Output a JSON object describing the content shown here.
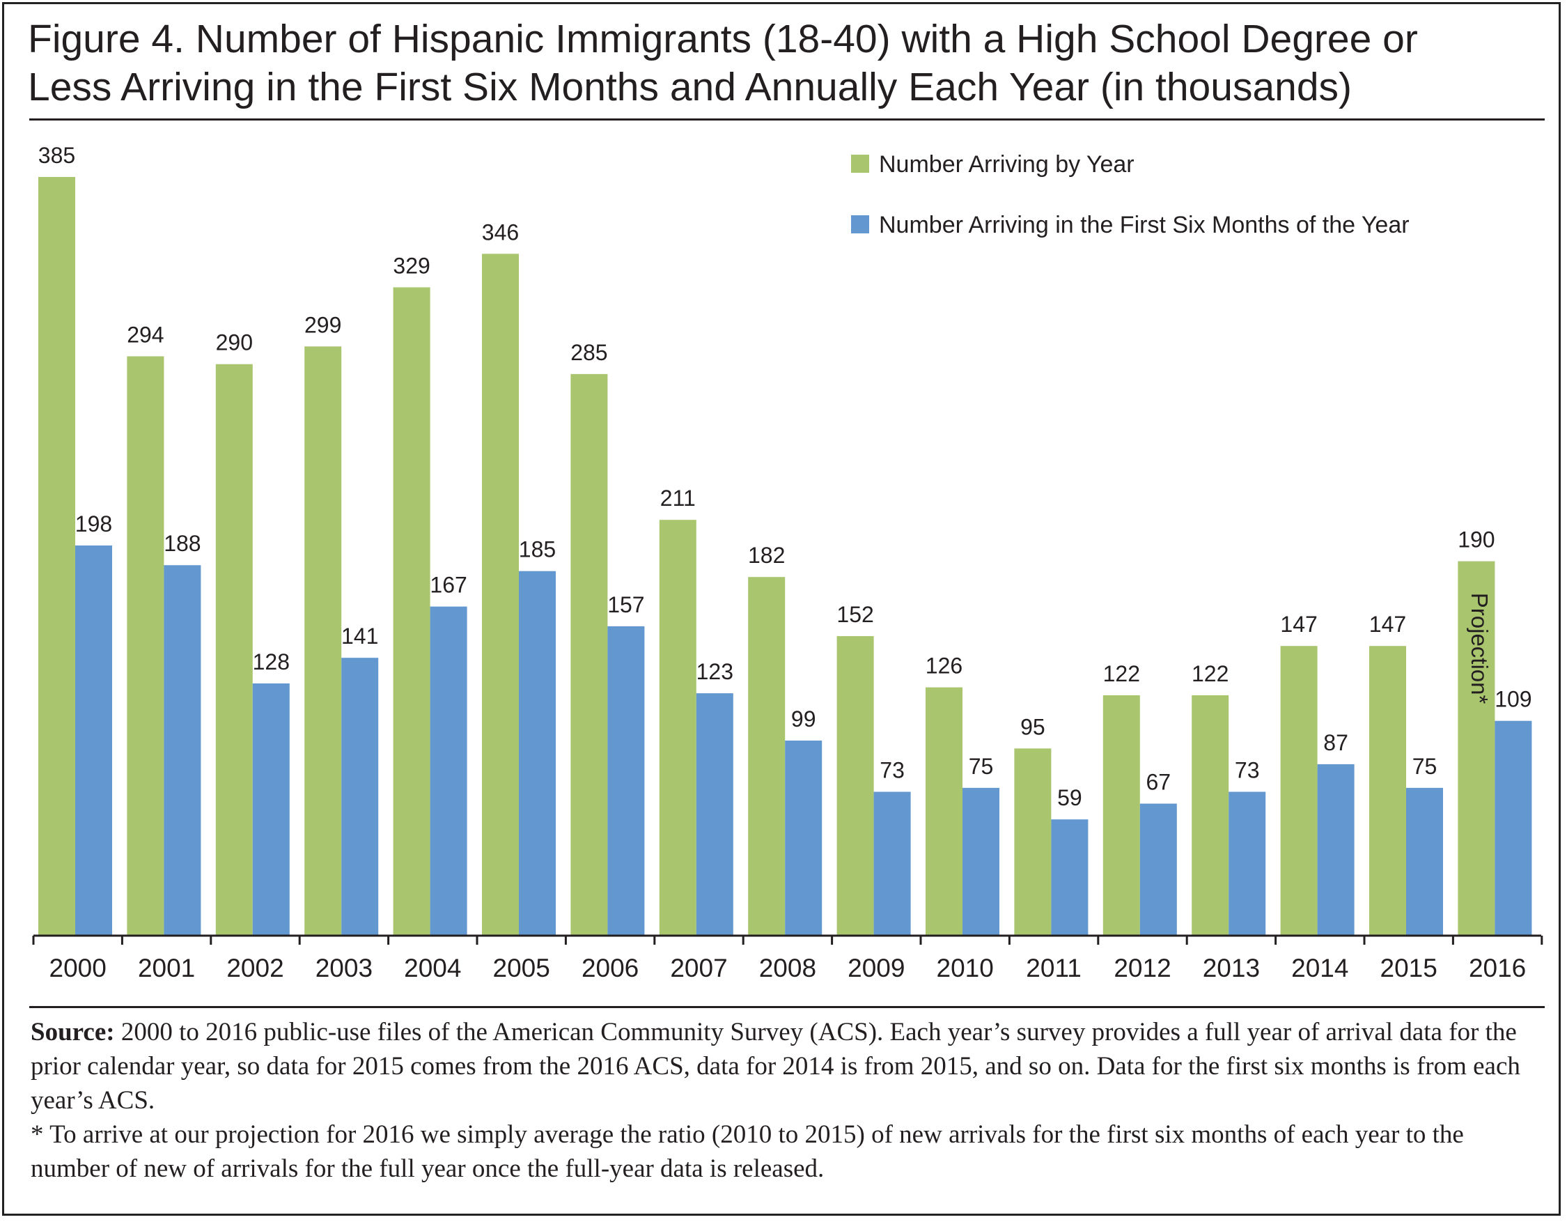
{
  "title": {
    "line1": "Figure 4. Number of Hispanic Immigrants (18-40) with a High School Degree or",
    "line2": "Less Arriving in the First Six Months and Annually Each Year (in thousands)"
  },
  "chart_data": {
    "type": "bar",
    "categories": [
      "2000",
      "2001",
      "2002",
      "2003",
      "2004",
      "2005",
      "2006",
      "2007",
      "2008",
      "2009",
      "2010",
      "2011",
      "2012",
      "2013",
      "2014",
      "2015",
      "2016"
    ],
    "series": [
      {
        "name": "Number Arriving by Year",
        "color": "#a9c66f",
        "values": [
          385,
          294,
          290,
          299,
          329,
          346,
          285,
          211,
          182,
          152,
          126,
          95,
          122,
          122,
          147,
          147,
          190
        ]
      },
      {
        "name": "Number Arriving in the First Six Months of the Year",
        "color": "#6298cf",
        "values": [
          198,
          188,
          128,
          141,
          167,
          185,
          157,
          123,
          99,
          73,
          75,
          59,
          67,
          73,
          87,
          75,
          109
        ]
      }
    ],
    "ylim": [
      0,
      385
    ],
    "grid": false,
    "legend_position": "top-right",
    "annotations": [
      {
        "category": "2016",
        "series": "Number Arriving by Year",
        "text": "Projection*",
        "rotation": "vertical"
      }
    ]
  },
  "source": {
    "label": "Source:",
    "text": " 2000 to 2016 public-use files of the American Community  Survey (ACS). Each year’s survey provides a full year of arrival data for the prior  calendar year, so data for 2015 comes from the 2016 ACS, data for 2014 is from 2015, and so on.  Data for the first six months is from each year’s ACS.",
    "note": "* To arrive at our projection for 2016 we simply average the ratio (2010 to 2015) of new arrivals for the first six months of each year to the number of new of arrivals for the full year once the full-year data is released."
  }
}
